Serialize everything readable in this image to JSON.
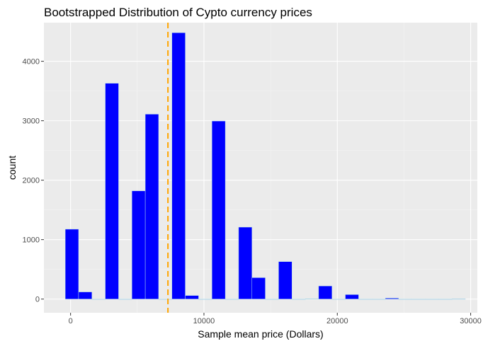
{
  "chart_data": {
    "type": "bar",
    "title": "Bootstrapped Distribution of Cypto currency prices",
    "xlabel": "Sample mean price (Dollars)",
    "ylabel": "count",
    "xlim": [
      -2000,
      30500
    ],
    "ylim": [
      -230,
      4650
    ],
    "x_ticks": [
      0,
      10000,
      20000,
      30000
    ],
    "y_ticks": [
      0,
      1000,
      2000,
      3000,
      4000
    ],
    "x_tick_labels": [
      "0",
      "10000",
      "20000",
      "30000"
    ],
    "y_tick_labels": [
      "0",
      "1000",
      "2000",
      "3000",
      "4000"
    ],
    "bin_width": 1000,
    "bins": [
      {
        "start": -400,
        "count": 1175
      },
      {
        "start": 600,
        "count": 120
      },
      {
        "start": 1600,
        "count": 0
      },
      {
        "start": 2600,
        "count": 3630
      },
      {
        "start": 3600,
        "count": 0
      },
      {
        "start": 4600,
        "count": 1820
      },
      {
        "start": 5600,
        "count": 3110
      },
      {
        "start": 6600,
        "count": 0
      },
      {
        "start": 7600,
        "count": 4480
      },
      {
        "start": 8600,
        "count": 60
      },
      {
        "start": 9600,
        "count": 0
      },
      {
        "start": 10600,
        "count": 2995
      },
      {
        "start": 11600,
        "count": 0
      },
      {
        "start": 12600,
        "count": 1210
      },
      {
        "start": 13600,
        "count": 360
      },
      {
        "start": 14600,
        "count": 0
      },
      {
        "start": 15600,
        "count": 630
      },
      {
        "start": 16600,
        "count": 0
      },
      {
        "start": 17600,
        "count": 5
      },
      {
        "start": 18600,
        "count": 220
      },
      {
        "start": 19600,
        "count": 0
      },
      {
        "start": 20600,
        "count": 75
      },
      {
        "start": 21600,
        "count": 0
      },
      {
        "start": 22600,
        "count": 0
      },
      {
        "start": 23600,
        "count": 15
      },
      {
        "start": 24600,
        "count": 0
      },
      {
        "start": 25600,
        "count": 0
      },
      {
        "start": 26600,
        "count": 0
      },
      {
        "start": 27600,
        "count": 0
      },
      {
        "start": 28600,
        "count": 3
      }
    ],
    "mean_line": {
      "x": 7300
    },
    "grid": true,
    "colors": {
      "bar_fill": "#0000ff",
      "bar_outline": "#add8e6",
      "mean_line": "#ffa500",
      "panel_background": "#ebebeb",
      "grid_major": "#ffffff",
      "grid_minor": "#f4f4f4"
    }
  }
}
